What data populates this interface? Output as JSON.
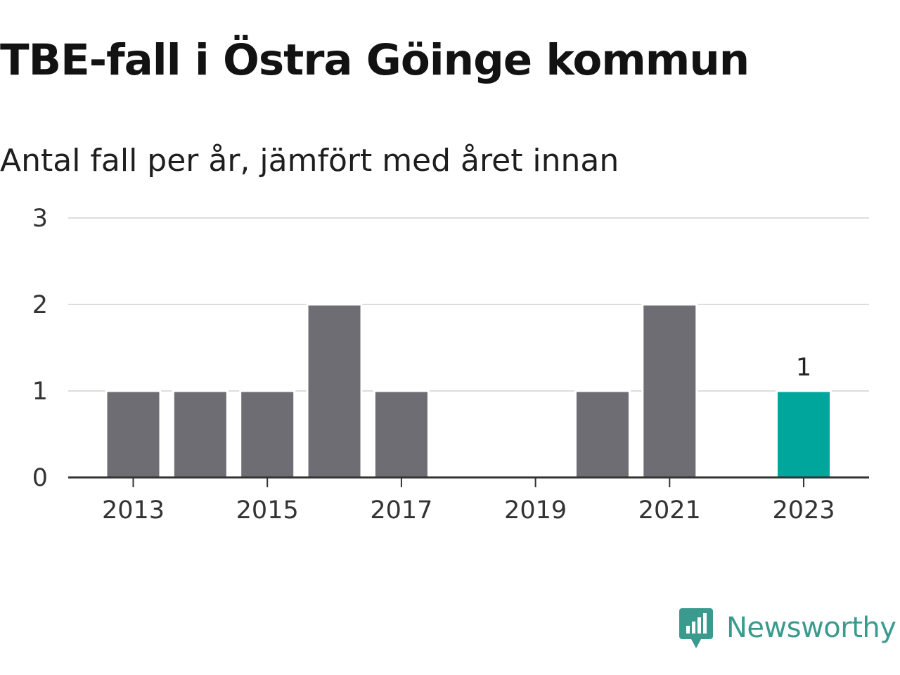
{
  "chart_data": {
    "type": "bar",
    "title": "TBE-fall i Östra Göinge kommun",
    "subtitle": "Antal fall per år, jämfört med året innan",
    "xlabel": "",
    "ylabel": "",
    "categories": [
      "2013",
      "2014",
      "2015",
      "2016",
      "2017",
      "2018",
      "2019",
      "2020",
      "2021",
      "2022",
      "2023"
    ],
    "values": [
      1,
      1,
      1,
      2,
      1,
      0,
      0,
      1,
      2,
      0,
      1
    ],
    "x_tick_labels": [
      "2013",
      "2015",
      "2017",
      "2019",
      "2021",
      "2023"
    ],
    "y_tick_labels": [
      "0",
      "1",
      "2",
      "3"
    ],
    "ylim": [
      0,
      3
    ],
    "grid": true,
    "highlight_category": "2023",
    "data_labels": [
      {
        "category": "2023",
        "text": "1"
      }
    ],
    "colors": {
      "bar": "#6e6d73",
      "highlight": "#00a69c",
      "grid": "#dddddd",
      "axis": "#333333"
    }
  },
  "brand": {
    "name": "Newsworthy",
    "icon": "newsworthy-logo-icon",
    "color": "#3a9a8e"
  }
}
